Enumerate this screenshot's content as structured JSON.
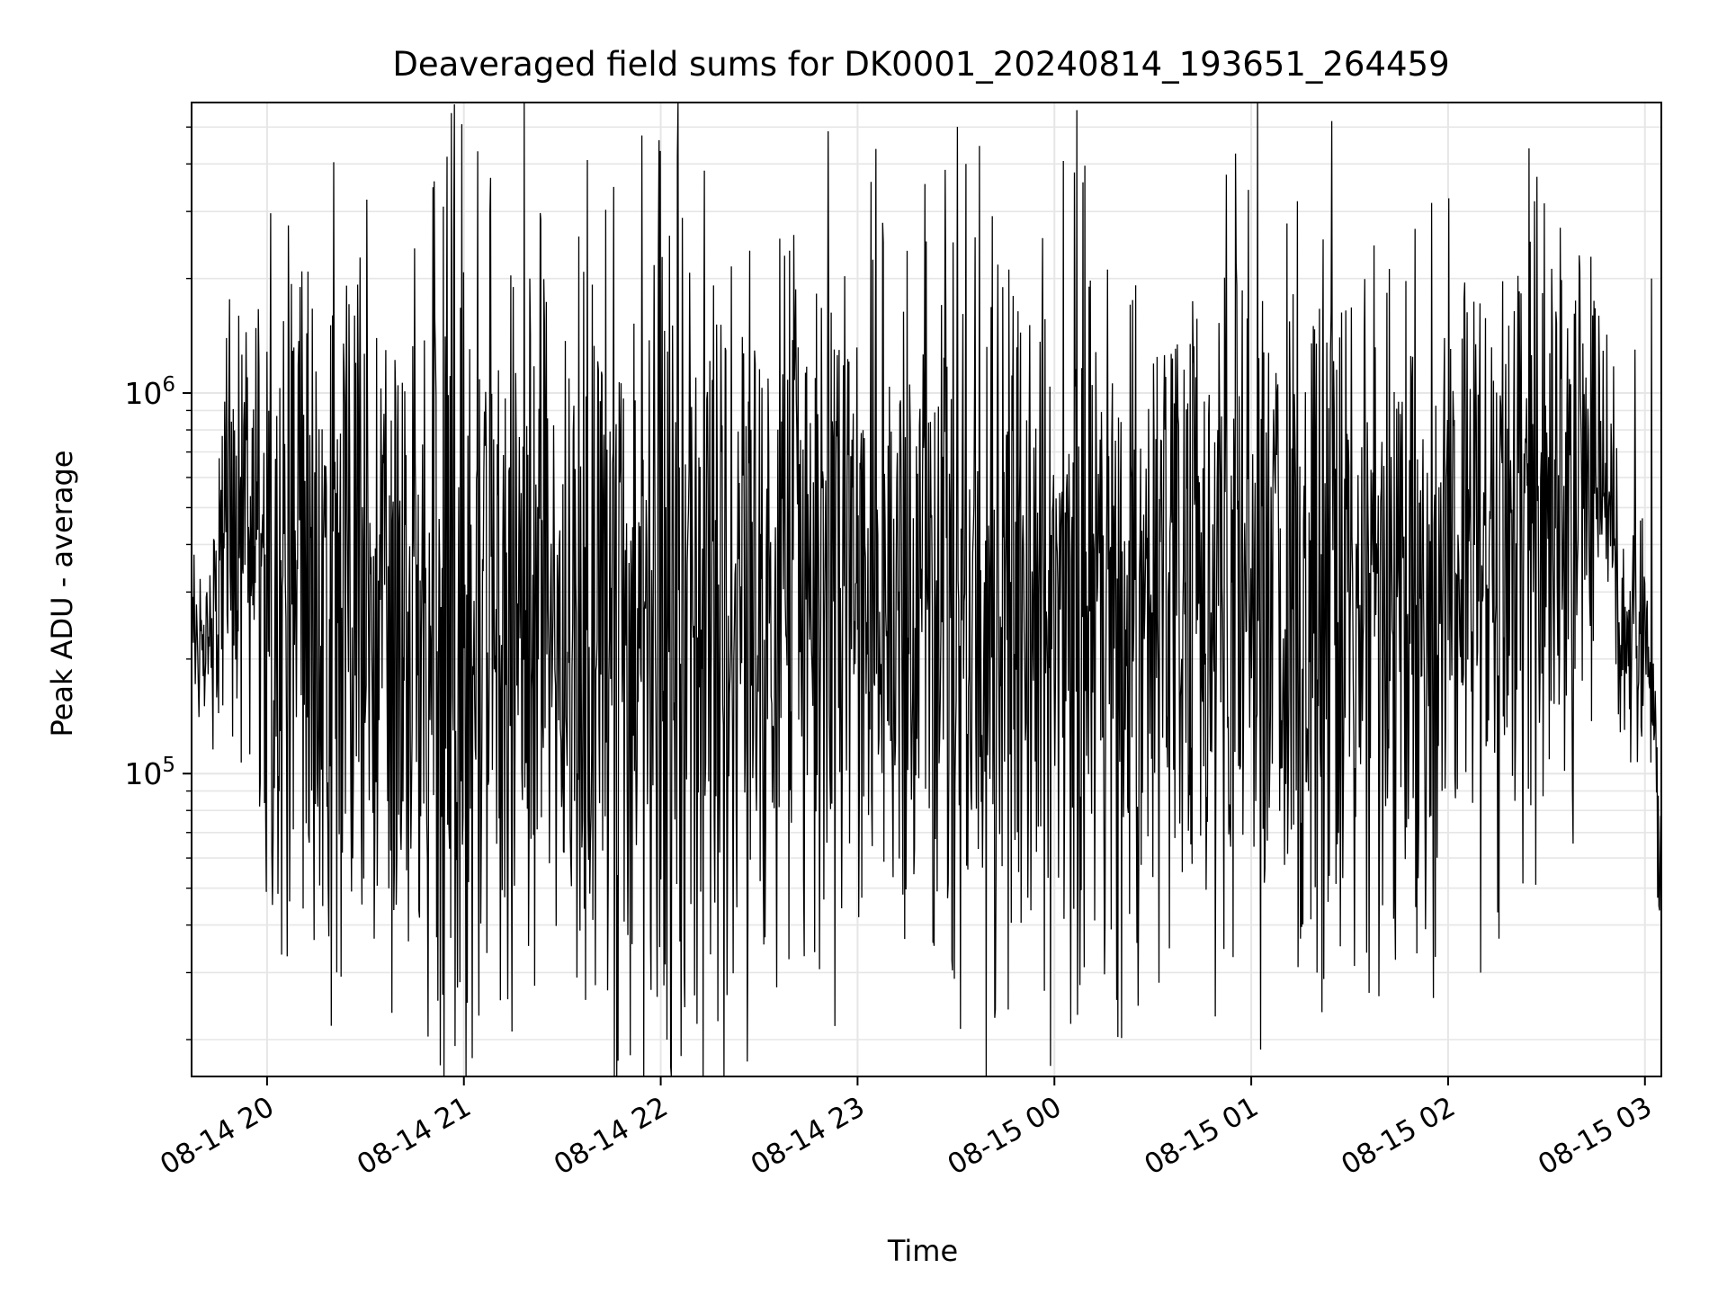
{
  "chart_data": {
    "type": "line",
    "title": "Deaveraged field sums for DK0001_20240814_193651_264459",
    "xlabel": "Time",
    "ylabel": "Peak ADU - average",
    "x_axis": {
      "kind": "time",
      "range": [
        "2024-08-14T19:37:00",
        "2024-08-15T03:05:00"
      ],
      "ticks": [
        {
          "time": "2024-08-14T20:00:00",
          "label": "08-14 20"
        },
        {
          "time": "2024-08-14T21:00:00",
          "label": "08-14 21"
        },
        {
          "time": "2024-08-14T22:00:00",
          "label": "08-14 22"
        },
        {
          "time": "2024-08-14T23:00:00",
          "label": "08-14 23"
        },
        {
          "time": "2024-08-15T00:00:00",
          "label": "08-15 00"
        },
        {
          "time": "2024-08-15T01:00:00",
          "label": "08-15 01"
        },
        {
          "time": "2024-08-15T02:00:00",
          "label": "08-15 02"
        },
        {
          "time": "2024-08-15T03:00:00",
          "label": "08-15 03"
        }
      ]
    },
    "y_axis": {
      "scale": "log",
      "range": [
        16000,
        5800000
      ],
      "major_ticks": [
        {
          "value": 100000,
          "base": "10",
          "exp": "5"
        },
        {
          "value": 1000000,
          "base": "10",
          "exp": "6"
        }
      ]
    },
    "grid": true,
    "line_color": "#000000",
    "envelope": [
      {
        "time": "2024-08-14T19:37:00",
        "level": 230000,
        "spread": 0.1
      },
      {
        "time": "2024-08-14T19:42:00",
        "level": 210000,
        "spread": 0.15
      },
      {
        "time": "2024-08-14T19:45:00",
        "level": 300000,
        "spread": 0.2
      },
      {
        "time": "2024-08-14T19:48:00",
        "level": 450000,
        "spread": 0.22
      },
      {
        "time": "2024-08-14T19:56:00",
        "level": 480000,
        "spread": 0.25
      },
      {
        "time": "2024-08-14T20:00:00",
        "level": 300000,
        "spread": 0.5
      },
      {
        "time": "2024-08-14T20:30:00",
        "level": 270000,
        "spread": 0.55
      },
      {
        "time": "2024-08-14T21:45:00",
        "level": 270000,
        "spread": 0.55
      },
      {
        "time": "2024-08-14T22:00:00",
        "level": 250000,
        "spread": 0.65
      },
      {
        "time": "2024-08-14T22:30:00",
        "level": 280000,
        "spread": 0.5
      },
      {
        "time": "2024-08-15T01:30:00",
        "level": 300000,
        "spread": 0.5
      },
      {
        "time": "2024-08-15T02:00:00",
        "level": 330000,
        "spread": 0.45
      },
      {
        "time": "2024-08-15T02:30:00",
        "level": 450000,
        "spread": 0.4
      },
      {
        "time": "2024-08-15T02:47:00",
        "level": 700000,
        "spread": 0.25
      },
      {
        "time": "2024-08-15T02:50:00",
        "level": 550000,
        "spread": 0.2
      },
      {
        "time": "2024-08-15T02:53:00",
        "level": 250000,
        "spread": 0.15
      },
      {
        "time": "2024-08-15T03:01:00",
        "level": 200000,
        "spread": 0.15
      },
      {
        "time": "2024-08-15T03:05:00",
        "level": 50000,
        "spread": 0.15
      }
    ],
    "spikes_up": [
      {
        "time": "2024-08-14T19:54:00",
        "value": 1100000
      },
      {
        "time": "2024-08-14T20:10:00",
        "value": 1900000
      },
      {
        "time": "2024-08-14T20:20:00",
        "value": 1600000
      },
      {
        "time": "2024-08-14T20:27:00",
        "value": 1200000
      },
      {
        "time": "2024-08-14T20:45:00",
        "value": 2400000
      },
      {
        "time": "2024-08-14T20:51:00",
        "value": 3600000
      },
      {
        "time": "2024-08-14T21:08:00",
        "value": 3000000
      },
      {
        "time": "2024-08-14T21:15:00",
        "value": 1900000
      },
      {
        "time": "2024-08-14T21:20:00",
        "value": 2000000
      },
      {
        "time": "2024-08-14T22:05:00",
        "value": 4200000
      },
      {
        "time": "2024-08-14T23:33:00",
        "value": 4000000
      },
      {
        "time": "2024-08-15T00:43:00",
        "value": 1100000
      },
      {
        "time": "2024-08-15T01:19:00",
        "value": 1500000
      },
      {
        "time": "2024-08-15T01:27:00",
        "value": 1400000
      },
      {
        "time": "2024-08-15T01:50:00",
        "value": 2700000
      },
      {
        "time": "2024-08-15T02:25:00",
        "value": 2500000
      },
      {
        "time": "2024-08-15T02:27:00",
        "value": 3700000
      },
      {
        "time": "2024-08-15T02:40:00",
        "value": 2300000
      },
      {
        "time": "2024-08-15T02:44:00",
        "value": 1600000
      },
      {
        "time": "2024-08-15T02:57:00",
        "value": 1300000
      },
      {
        "time": "2024-08-15T03:02:00",
        "value": 2000000
      }
    ],
    "spikes_down": [
      {
        "time": "2024-08-14T20:56:00",
        "value": 37000
      },
      {
        "time": "2024-08-14T21:01:00",
        "value": 25000
      },
      {
        "time": "2024-08-14T21:57:00",
        "value": 27000
      },
      {
        "time": "2024-08-14T22:02:00",
        "value": 20000
      },
      {
        "time": "2024-08-14T22:03:00",
        "value": 17000
      },
      {
        "time": "2024-08-14T22:11:00",
        "value": 22000
      },
      {
        "time": "2024-08-14T23:42:00",
        "value": 24000
      },
      {
        "time": "2024-08-14T23:46:00",
        "value": 24000
      },
      {
        "time": "2024-08-15T00:05:00",
        "value": 22000
      },
      {
        "time": "2024-08-15T00:09:00",
        "value": 31000
      },
      {
        "time": "2024-08-15T00:49:00",
        "value": 23000
      },
      {
        "time": "2024-08-15T01:20:00",
        "value": 30000
      },
      {
        "time": "2024-08-15T01:39:00",
        "value": 26000
      },
      {
        "time": "2024-08-15T01:56:00",
        "value": 33000
      },
      {
        "time": "2024-08-15T02:10:00",
        "value": 30000
      }
    ]
  }
}
